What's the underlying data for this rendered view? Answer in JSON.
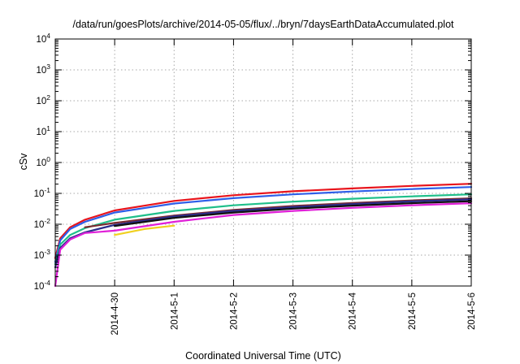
{
  "chart_data": {
    "type": "line",
    "title": "/data/run/goesPlots/archive/2014-05-05/flux/../bryn/7daysEarthDataAccumulated.plot",
    "xlabel": "Coordinated Universal Time (UTC)",
    "ylabel": "cSv",
    "x_ticks": [
      "2014-4-30",
      "2014-5-1",
      "2014-5-2",
      "2014-5-3",
      "2014-5-4",
      "2014-5-5",
      "2014-5-6"
    ],
    "x_range": [
      "2014-04-29 00:00",
      "2014-05-06 00:00"
    ],
    "yscale": "log",
    "ylim": [
      0.0001,
      10000
    ],
    "y_tick_exponents": [
      -4,
      -3,
      -2,
      -1,
      0,
      1,
      2,
      3,
      4
    ],
    "grid": true,
    "series": [
      {
        "color": "#e8141c",
        "x": [
          "2014-04-29 00:00",
          "2014-04-29 02:00",
          "2014-04-29 06:00",
          "2014-04-29 12:00",
          "2014-04-30 00:00",
          "2014-05-01 00:00",
          "2014-05-02 00:00",
          "2014-05-03 00:00",
          "2014-05-04 00:00",
          "2014-05-05 00:00",
          "2014-05-06 00:00"
        ],
        "y": [
          0.0008,
          0.0035,
          0.008,
          0.014,
          0.028,
          0.057,
          0.087,
          0.117,
          0.145,
          0.175,
          0.205
        ]
      },
      {
        "color": "#2e5ee8",
        "x": [
          "2014-04-29 00:00",
          "2014-04-29 02:00",
          "2014-04-29 06:00",
          "2014-04-29 12:00",
          "2014-04-30 00:00",
          "2014-05-01 00:00",
          "2014-05-02 00:00",
          "2014-05-03 00:00",
          "2014-05-04 00:00",
          "2014-05-05 00:00",
          "2014-05-06 00:00"
        ],
        "y": [
          0.0006,
          0.003,
          0.007,
          0.012,
          0.024,
          0.047,
          0.07,
          0.093,
          0.115,
          0.138,
          0.16
        ]
      },
      {
        "color": "#1fbf8a",
        "x": [
          "2014-04-29 00:00",
          "2014-04-29 02:00",
          "2014-04-29 06:00",
          "2014-04-29 12:00",
          "2014-04-30 00:00",
          "2014-05-01 00:00",
          "2014-05-02 00:00",
          "2014-05-03 00:00",
          "2014-05-04 00:00",
          "2014-05-05 00:00",
          "2014-05-06 00:00"
        ],
        "y": [
          0.0005,
          0.0022,
          0.0045,
          0.0075,
          0.014,
          0.027,
          0.041,
          0.054,
          0.067,
          0.08,
          0.093
        ]
      },
      {
        "color": "#7a2a30",
        "x": [
          "2014-04-29 12:00",
          "2014-04-30 00:00",
          "2014-05-01 00:00",
          "2014-05-02 00:00",
          "2014-05-03 00:00",
          "2014-05-04 00:00",
          "2014-05-05 00:00",
          "2014-05-06 00:00"
        ],
        "y": [
          0.008,
          0.011,
          0.019,
          0.029,
          0.039,
          0.049,
          0.059,
          0.069
        ]
      },
      {
        "color": "#2a2c8c",
        "x": [
          "2014-04-29 00:00",
          "2014-04-29 02:00",
          "2014-04-29 06:00",
          "2014-04-29 12:00",
          "2014-04-30 00:00",
          "2014-05-01 00:00",
          "2014-05-02 00:00",
          "2014-05-03 00:00",
          "2014-05-04 00:00",
          "2014-05-05 00:00",
          "2014-05-06 00:00"
        ],
        "y": [
          0.0004,
          0.0017,
          0.0035,
          0.0055,
          0.0095,
          0.018,
          0.027,
          0.036,
          0.045,
          0.055,
          0.064
        ]
      },
      {
        "color": "#111111",
        "x": [
          "2014-04-30 00:00",
          "2014-05-01 00:00",
          "2014-05-02 00:00",
          "2014-05-03 00:00",
          "2014-05-04 00:00",
          "2014-05-05 00:00",
          "2014-05-06 00:00"
        ],
        "y": [
          0.0088,
          0.016,
          0.024,
          0.032,
          0.04,
          0.048,
          0.056
        ]
      },
      {
        "color": "#f0d020",
        "x": [
          "2014-04-30 00:00",
          "2014-04-30 12:00",
          "2014-05-01 00:00"
        ],
        "y": [
          0.0045,
          0.007,
          0.009
        ]
      },
      {
        "color": "#e020d8",
        "x": [
          "2014-04-29 00:00",
          "2014-04-29 02:00",
          "2014-04-29 06:00",
          "2014-04-29 12:00",
          "2014-04-30 00:00",
          "2014-05-01 00:00",
          "2014-05-02 00:00",
          "2014-05-03 00:00",
          "2014-05-04 00:00",
          "2014-05-05 00:00",
          "2014-05-06 00:00"
        ],
        "y": [
          0.0001,
          0.0015,
          0.0032,
          0.0052,
          0.0062,
          0.012,
          0.02,
          0.027,
          0.034,
          0.041,
          0.048
        ]
      }
    ]
  }
}
